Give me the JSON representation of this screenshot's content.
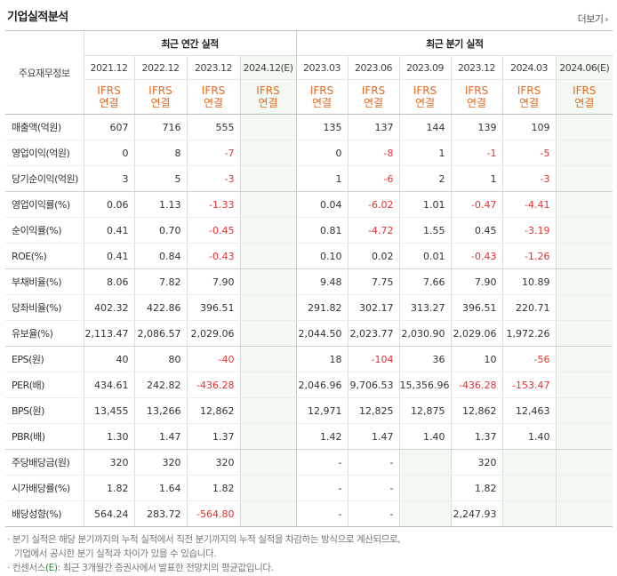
{
  "title": "기업실적분석",
  "more_label": "더보기",
  "more_icon": "chevron-right-icon",
  "header": {
    "corner": "주요재무정보",
    "annual_group": "최근 연간 실적",
    "quarter_group": "최근 분기 실적",
    "annual_periods": [
      "2021.12",
      "2022.12",
      "2023.12",
      "2024.12(E)"
    ],
    "quarter_periods": [
      "2023.03",
      "2023.06",
      "2023.09",
      "2023.12",
      "2024.03",
      "2024.06(E)"
    ],
    "standard_top": "IFRS",
    "standard_bottom": "연결"
  },
  "rows": [
    {
      "label": "매출액(억원)",
      "values": [
        "607",
        "716",
        "555",
        "",
        "135",
        "137",
        "144",
        "139",
        "109",
        ""
      ]
    },
    {
      "label": "영업이익(억원)",
      "values": [
        "0",
        "8",
        "-7",
        "",
        "0",
        "-8",
        "1",
        "-1",
        "-5",
        ""
      ]
    },
    {
      "label": "당기순이익(억원)",
      "values": [
        "3",
        "5",
        "-3",
        "",
        "1",
        "-6",
        "2",
        "1",
        "-3",
        ""
      ]
    },
    {
      "label": "영업이익률(%)",
      "values": [
        "0.06",
        "1.13",
        "-1.33",
        "",
        "0.04",
        "-6.02",
        "1.01",
        "-0.47",
        "-4.41",
        ""
      ]
    },
    {
      "label": "순이익률(%)",
      "values": [
        "0.41",
        "0.70",
        "-0.45",
        "",
        "0.81",
        "-4.72",
        "1.55",
        "0.45",
        "-3.19",
        ""
      ]
    },
    {
      "label": "ROE(%)",
      "values": [
        "0.41",
        "0.84",
        "-0.43",
        "",
        "0.10",
        "0.02",
        "0.01",
        "-0.43",
        "-1.26",
        ""
      ]
    },
    {
      "label": "부채비율(%)",
      "values": [
        "8.06",
        "7.82",
        "7.90",
        "",
        "9.48",
        "7.75",
        "7.66",
        "7.90",
        "10.89",
        ""
      ]
    },
    {
      "label": "당좌비율(%)",
      "values": [
        "402.32",
        "422.86",
        "396.51",
        "",
        "291.82",
        "302.17",
        "313.27",
        "396.51",
        "220.71",
        ""
      ]
    },
    {
      "label": "유보율(%)",
      "values": [
        "2,113.47",
        "2,086.57",
        "2,029.06",
        "",
        "2,044.50",
        "2,023.77",
        "2,030.90",
        "2,029.06",
        "1,972.26",
        ""
      ]
    },
    {
      "label": "EPS(원)",
      "values": [
        "40",
        "80",
        "-40",
        "",
        "18",
        "-104",
        "36",
        "10",
        "-56",
        ""
      ]
    },
    {
      "label": "PER(배)",
      "values": [
        "434.61",
        "242.82",
        "-436.28",
        "",
        "2,046.96",
        "9,706.53",
        "15,356.96",
        "-436.28",
        "-153.47",
        ""
      ]
    },
    {
      "label": "BPS(원)",
      "values": [
        "13,455",
        "13,266",
        "12,862",
        "",
        "12,971",
        "12,825",
        "12,875",
        "12,862",
        "12,463",
        ""
      ]
    },
    {
      "label": "PBR(배)",
      "values": [
        "1.30",
        "1.47",
        "1.37",
        "",
        "1.42",
        "1.47",
        "1.40",
        "1.37",
        "1.40",
        ""
      ]
    },
    {
      "label": "주당배당금(원)",
      "values": [
        "320",
        "320",
        "320",
        "",
        "-",
        "-",
        "",
        "320",
        "",
        ""
      ]
    },
    {
      "label": "시가배당률(%)",
      "values": [
        "1.82",
        "1.64",
        "1.82",
        "",
        "-",
        "-",
        "",
        "1.82",
        "",
        ""
      ]
    },
    {
      "label": "배당성향(%)",
      "values": [
        "564.24",
        "283.72",
        "-564.80",
        "",
        "-",
        "-",
        "",
        "2,247.93",
        "",
        ""
      ]
    }
  ],
  "notes": {
    "line1": "분기 실적은 해당 분기까지의 누적 실적에서 직전 분기까지의 누적 실적을 차감하는 방식으로 계산되므로,",
    "line2": "기업에서 공시한 분기 실적과 차이가 있을 수 있습니다.",
    "line3_prefix": "컨센서스",
    "line3_mark": "(E)",
    "line3_suffix": ": 최근 3개월간 증권사에서 발표한 전망치의 평균값입니다."
  },
  "colors": {
    "negative": "#e83030",
    "ifrs": "#e8691f",
    "estimate_bg": "#f2f9f2",
    "estimate_text": "#2a8a3a"
  }
}
